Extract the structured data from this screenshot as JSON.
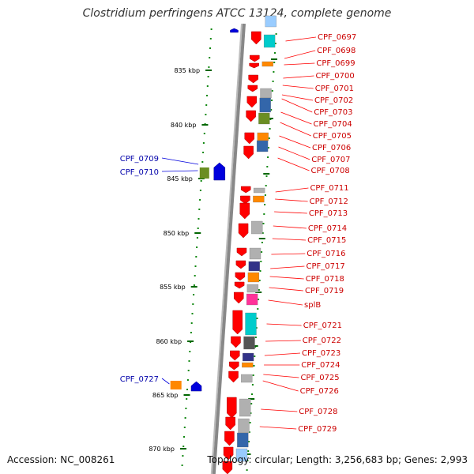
{
  "title": "Clostridium perfringens ATCC 13124, complete genome",
  "accession": "Accession: NC_008261",
  "summary": "Topology: circular; Length: 3,256,683 bp; Genes: 2,993",
  "colors": {
    "forward_gene": "#0000dd",
    "reverse_gene": "#ff0000",
    "backbone": "#888888",
    "tick": "#006600",
    "label_forward": "#0000aa",
    "label_reverse": "#cc0000"
  },
  "scale_labels": [
    "835 kbp",
    "840 kbp",
    "845 kbp",
    "850 kbp",
    "855 kbp",
    "860 kbp",
    "865 kbp",
    "870 kbp"
  ],
  "genes_left": [
    "CPF_0709",
    "CPF_0710",
    "CPF_0727"
  ],
  "genes_right": [
    "CPF_0697",
    "CPF_0698",
    "CPF_0699",
    "CPF_0700",
    "CPF_0701",
    "CPF_0702",
    "CPF_0703",
    "CPF_0704",
    "CPF_0705",
    "CPF_0706",
    "CPF_0707",
    "CPF_0708",
    "CPF_0711",
    "CPF_0712",
    "CPF_0713",
    "CPF_0714",
    "CPF_0715",
    "CPF_0716",
    "CPF_0717",
    "CPF_0718",
    "CPF_0719",
    "splB",
    "CPF_0721",
    "CPF_0722",
    "CPF_0723",
    "CPF_0724",
    "CPF_0725",
    "CPF_0726",
    "CPF_0728",
    "CPF_0729"
  ],
  "cog_colors": [
    "#99ccff",
    "#00cccc",
    "#ff8800",
    "#b0b0b0",
    "#3366aa",
    "#6b8e23",
    "#333388",
    "#ff3399",
    "#555555"
  ]
}
